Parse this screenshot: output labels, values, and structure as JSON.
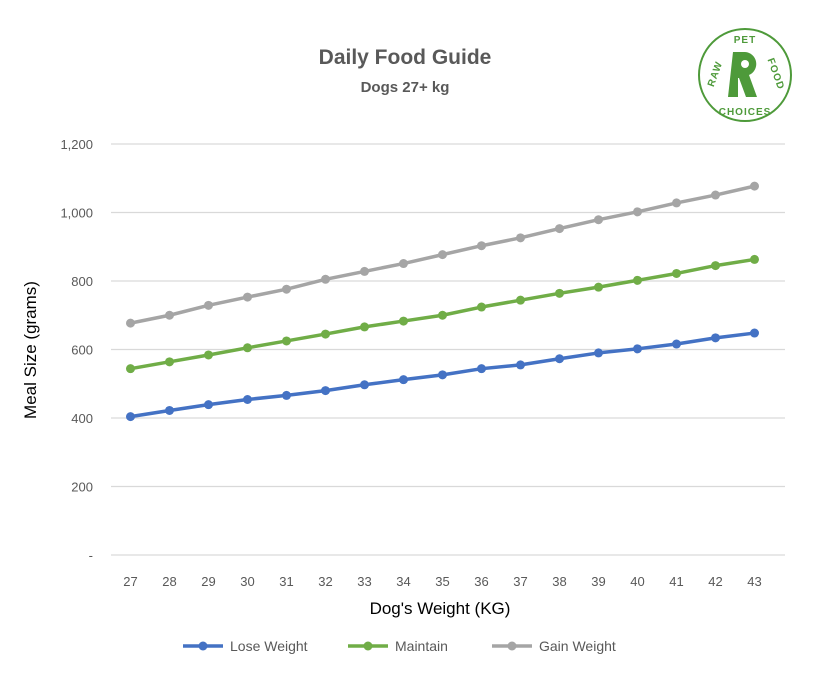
{
  "chart_data": {
    "type": "line",
    "title": "Daily Food Guide",
    "subtitle": "Dogs 27+ kg",
    "xlabel": "Dog's Weight (KG)",
    "ylabel": "Meal Size (grams)",
    "categories": [
      "27",
      "28",
      "29",
      "30",
      "31",
      "32",
      "33",
      "34",
      "35",
      "36",
      "37",
      "38",
      "39",
      "40",
      "41",
      "42",
      "43"
    ],
    "ylim": [
      0,
      1200
    ],
    "yticks": [
      0,
      200,
      400,
      600,
      800,
      1000,
      1200
    ],
    "ytick_labels": [
      "-",
      "200",
      "400",
      "600",
      "800",
      "1,000",
      "1,200"
    ],
    "grid": true,
    "legend_position": "bottom",
    "series": [
      {
        "name": "Lose Weight",
        "color": "#4472c4",
        "values": [
          404,
          422,
          439,
          454,
          466,
          480,
          497,
          512,
          526,
          544,
          555,
          573,
          590,
          602,
          616,
          634,
          648
        ]
      },
      {
        "name": "Maintain",
        "color": "#70ad47",
        "values": [
          544,
          564,
          584,
          605,
          625,
          645,
          666,
          683,
          700,
          724,
          744,
          764,
          782,
          802,
          822,
          845,
          863
        ]
      },
      {
        "name": "Gain Weight",
        "color": "#a5a5a5",
        "values": [
          677,
          700,
          729,
          753,
          776,
          805,
          828,
          851,
          877,
          903,
          926,
          953,
          979,
          1002,
          1028,
          1051,
          1077
        ]
      }
    ]
  },
  "logo": {
    "top": "PET",
    "left": "RAW",
    "right": "FOOD",
    "bottom": "CHOICES",
    "letter": "R",
    "color": "#4e9a3a"
  }
}
